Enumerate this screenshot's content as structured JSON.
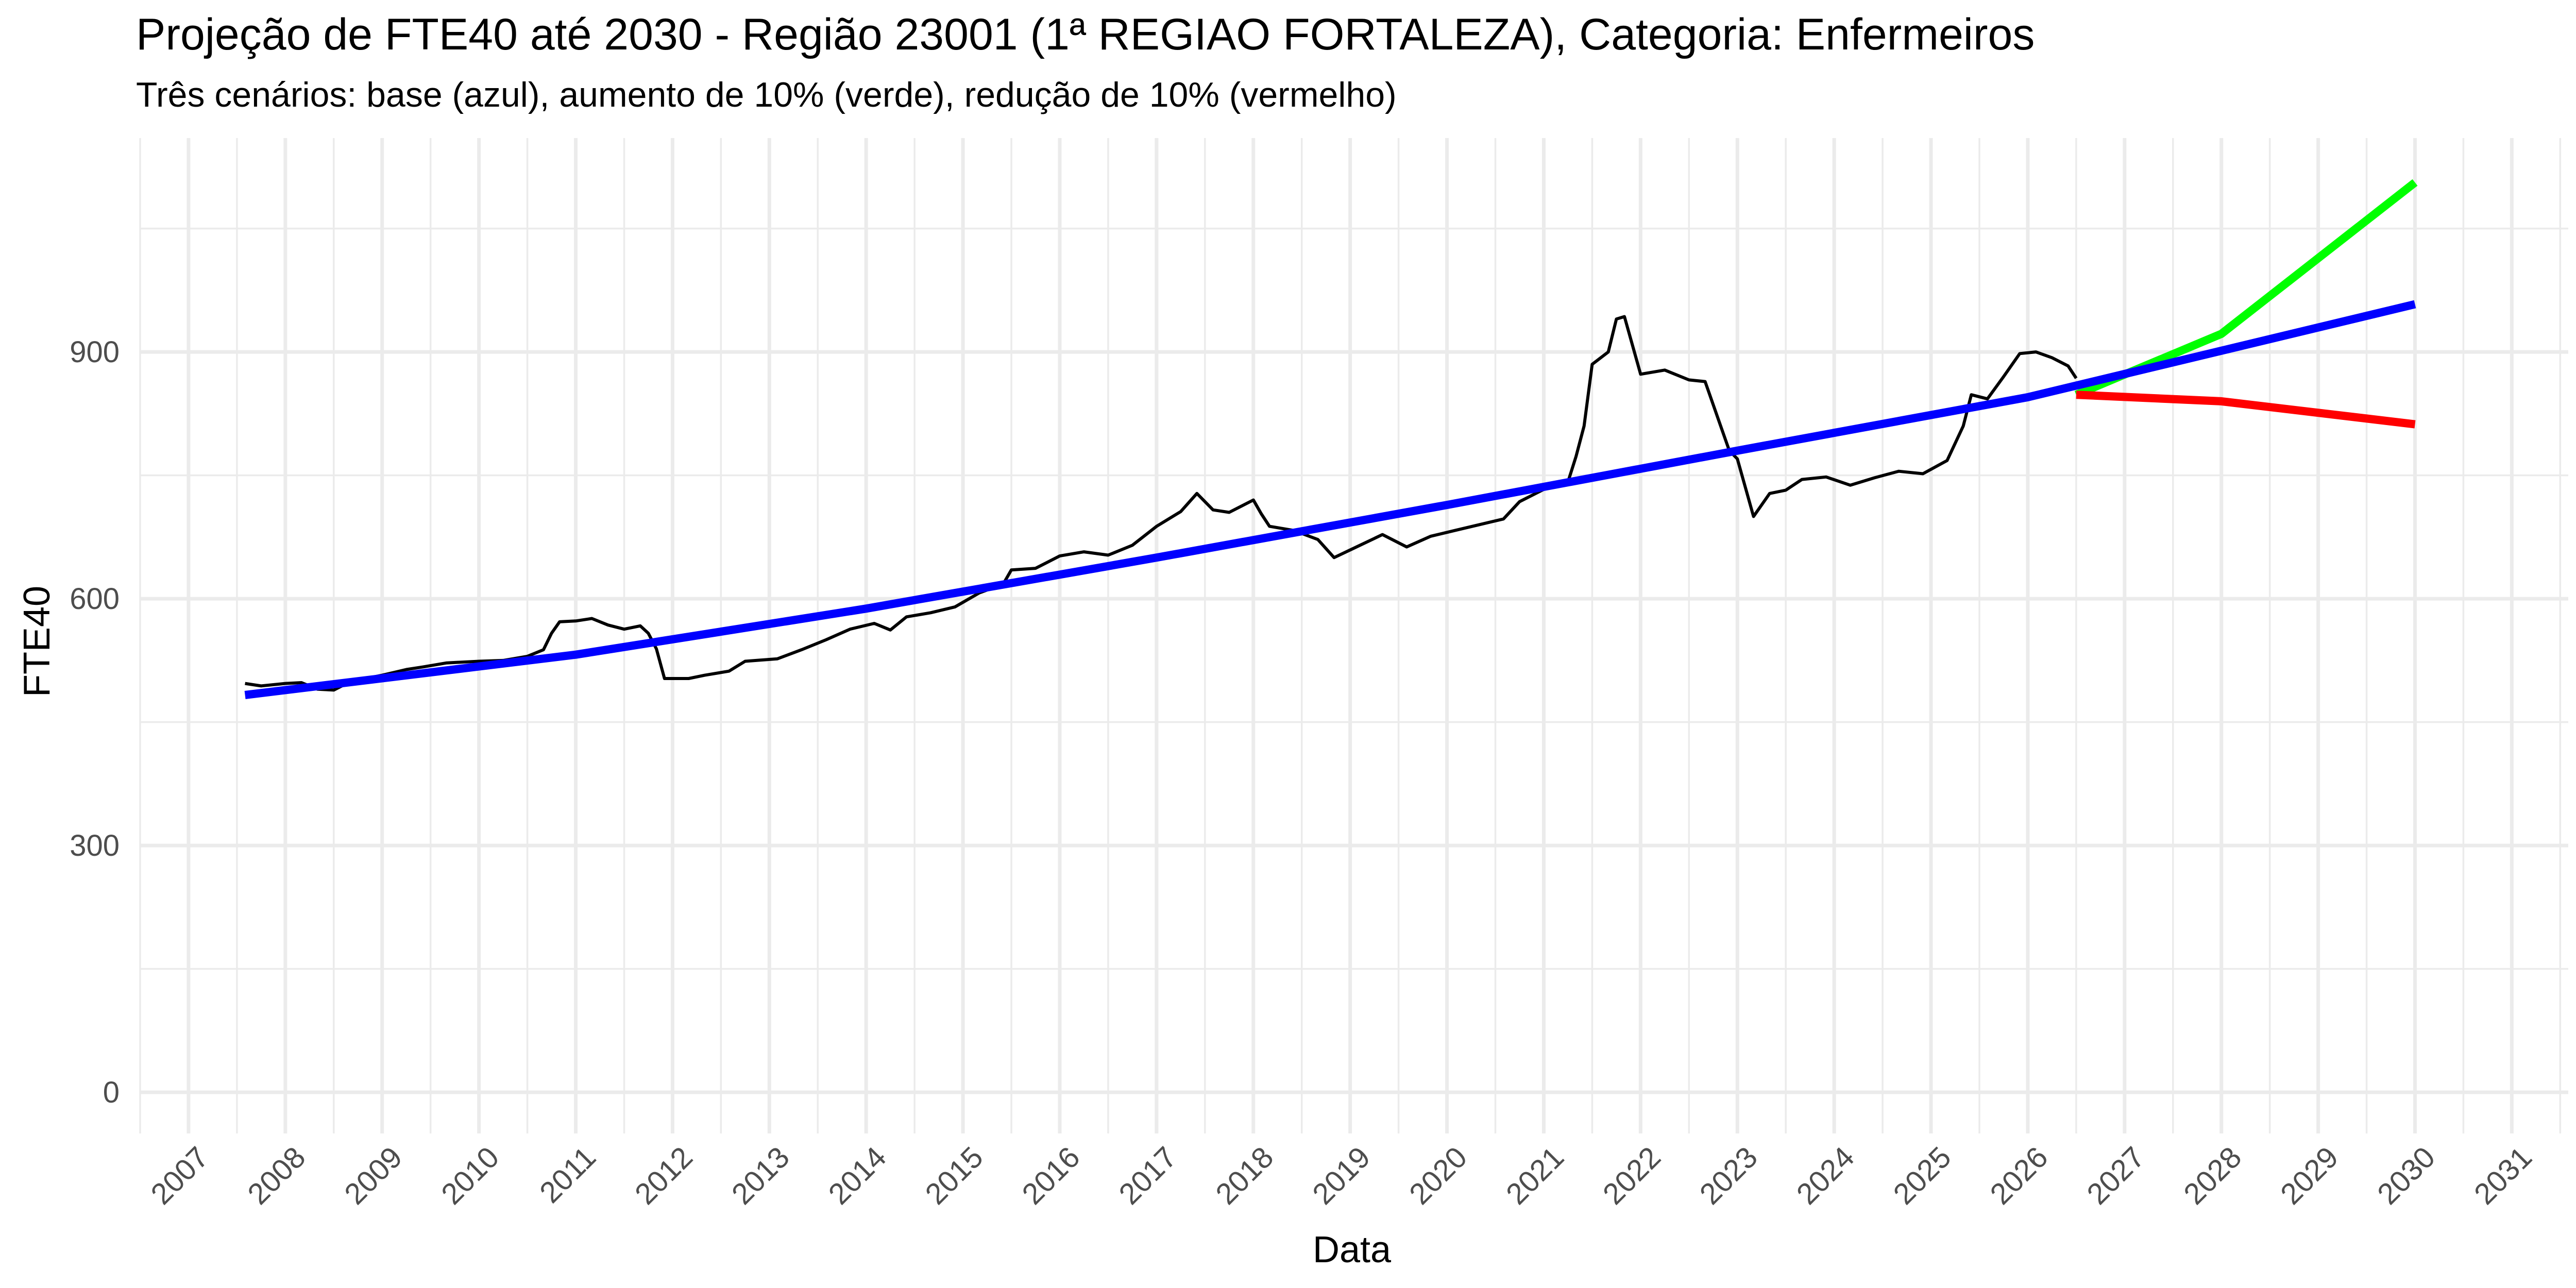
{
  "chart_data": {
    "type": "line",
    "title": "Projeção de FTE40 até 2030 - Região 23001 (1ª REGIAO FORTALEZA), Categoria: Enfermeiros",
    "subtitle": "Três cenários: base (azul), aumento de 10% (verde), redução de 10% (vermelho)",
    "xlabel": "Data",
    "ylabel": "FTE40",
    "x_ticks": [
      "2007",
      "2008",
      "2009",
      "2010",
      "2011",
      "2012",
      "2013",
      "2014",
      "2015",
      "2016",
      "2017",
      "2018",
      "2019",
      "2020",
      "2021",
      "2022",
      "2023",
      "2024",
      "2025",
      "2026",
      "2027",
      "2028",
      "2029",
      "2030",
      "2031"
    ],
    "y_ticks": [
      0,
      300,
      600,
      900
    ],
    "xlim": [
      "2006-07-01",
      "2031-08-01"
    ],
    "ylim": [
      -50,
      1160
    ],
    "grid": true,
    "legend": "none",
    "colors": {
      "observed": "#000000",
      "base": "#0000ff",
      "increase": "#00ff00",
      "decrease": "#ff0000",
      "grid": "#ebebeb",
      "tick_text": "#4d4d4d"
    },
    "series": [
      {
        "color_role": "observed",
        "points": [
          [
            "2007-08-01",
            497
          ],
          [
            "2007-10-01",
            494
          ],
          [
            "2008-01-01",
            497
          ],
          [
            "2008-03-01",
            498
          ],
          [
            "2008-05-01",
            490
          ],
          [
            "2008-07-01",
            489
          ],
          [
            "2008-09-01",
            499
          ],
          [
            "2008-11-01",
            503
          ],
          [
            "2009-01-01",
            507
          ],
          [
            "2009-04-01",
            514
          ],
          [
            "2009-06-01",
            517
          ],
          [
            "2009-09-01",
            522
          ],
          [
            "2010-01-01",
            524
          ],
          [
            "2010-04-01",
            525
          ],
          [
            "2010-07-01",
            530
          ],
          [
            "2010-09-01",
            538
          ],
          [
            "2010-10-01",
            558
          ],
          [
            "2010-11-01",
            572
          ],
          [
            "2011-01-01",
            573
          ],
          [
            "2011-03-01",
            576
          ],
          [
            "2011-05-01",
            568
          ],
          [
            "2011-07-01",
            563
          ],
          [
            "2011-09-01",
            567
          ],
          [
            "2011-10-01",
            558
          ],
          [
            "2011-11-01",
            539
          ],
          [
            "2011-12-01",
            503
          ],
          [
            "2012-03-01",
            503
          ],
          [
            "2012-05-01",
            507
          ],
          [
            "2012-08-01",
            512
          ],
          [
            "2012-10-01",
            524
          ],
          [
            "2013-02-01",
            527
          ],
          [
            "2013-05-01",
            538
          ],
          [
            "2013-08-01",
            550
          ],
          [
            "2013-11-01",
            563
          ],
          [
            "2014-02-01",
            570
          ],
          [
            "2014-04-01",
            562
          ],
          [
            "2014-06-01",
            578
          ],
          [
            "2014-09-01",
            583
          ],
          [
            "2014-12-01",
            590
          ],
          [
            "2015-03-01",
            607
          ],
          [
            "2015-06-01",
            618
          ],
          [
            "2015-07-01",
            635
          ],
          [
            "2015-10-01",
            637
          ],
          [
            "2016-01-01",
            652
          ],
          [
            "2016-04-01",
            657
          ],
          [
            "2016-07-01",
            653
          ],
          [
            "2016-10-01",
            665
          ],
          [
            "2017-01-01",
            688
          ],
          [
            "2017-04-01",
            706
          ],
          [
            "2017-06-01",
            728
          ],
          [
            "2017-08-01",
            708
          ],
          [
            "2017-10-01",
            705
          ],
          [
            "2018-01-01",
            720
          ],
          [
            "2018-02-01",
            703
          ],
          [
            "2018-03-01",
            688
          ],
          [
            "2018-06-01",
            683
          ],
          [
            "2018-09-01",
            672
          ],
          [
            "2018-11-01",
            650
          ],
          [
            "2019-02-01",
            664
          ],
          [
            "2019-05-01",
            678
          ],
          [
            "2019-08-01",
            663
          ],
          [
            "2019-11-01",
            676
          ],
          [
            "2020-02-01",
            683
          ],
          [
            "2020-05-01",
            690
          ],
          [
            "2020-08-01",
            697
          ],
          [
            "2020-10-01",
            718
          ],
          [
            "2021-01-01",
            733
          ],
          [
            "2021-04-01",
            742
          ],
          [
            "2021-05-01",
            773
          ],
          [
            "2021-06-01",
            810
          ],
          [
            "2021-07-01",
            885
          ],
          [
            "2021-09-01",
            900
          ],
          [
            "2021-10-01",
            940
          ],
          [
            "2021-11-01",
            943
          ],
          [
            "2022-01-01",
            873
          ],
          [
            "2022-04-01",
            878
          ],
          [
            "2022-07-01",
            866
          ],
          [
            "2022-09-01",
            864
          ],
          [
            "2022-11-01",
            808
          ],
          [
            "2022-12-01",
            780
          ],
          [
            "2023-01-01",
            770
          ],
          [
            "2023-02-01",
            735
          ],
          [
            "2023-03-01",
            700
          ],
          [
            "2023-05-01",
            728
          ],
          [
            "2023-07-01",
            732
          ],
          [
            "2023-09-01",
            745
          ],
          [
            "2023-12-01",
            748
          ],
          [
            "2024-03-01",
            738
          ],
          [
            "2024-06-01",
            747
          ],
          [
            "2024-09-01",
            755
          ],
          [
            "2024-12-01",
            752
          ],
          [
            "2025-03-01",
            768
          ],
          [
            "2025-05-01",
            810
          ],
          [
            "2025-06-01",
            848
          ],
          [
            "2025-08-01",
            843
          ],
          [
            "2025-10-01",
            870
          ],
          [
            "2025-12-01",
            898
          ],
          [
            "2026-02-01",
            900
          ],
          [
            "2026-04-01",
            893
          ],
          [
            "2026-06-01",
            883
          ],
          [
            "2026-07-01",
            868
          ]
        ]
      },
      {
        "color_role": "base",
        "points": [
          [
            "2007-08-01",
            483
          ],
          [
            "2011-01-01",
            532
          ],
          [
            "2014-01-01",
            588
          ],
          [
            "2017-01-01",
            650
          ],
          [
            "2020-01-01",
            714
          ],
          [
            "2023-01-01",
            780
          ],
          [
            "2026-01-01",
            845
          ],
          [
            "2030-01-01",
            958
          ]
        ]
      },
      {
        "color_role": "increase",
        "points": [
          [
            "2026-07-01",
            848
          ],
          [
            "2028-01-01",
            922
          ],
          [
            "2030-01-01",
            1106
          ]
        ]
      },
      {
        "color_role": "decrease",
        "points": [
          [
            "2026-07-01",
            848
          ],
          [
            "2028-01-01",
            840
          ],
          [
            "2030-01-01",
            812
          ]
        ]
      }
    ]
  }
}
